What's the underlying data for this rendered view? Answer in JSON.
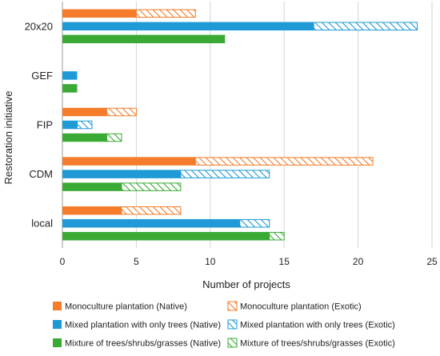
{
  "chart_data": {
    "type": "bar",
    "orientation": "horizontal",
    "stacked": true,
    "xlabel": "Number of projects",
    "ylabel": "Restoration initiative",
    "xlim": [
      0,
      25
    ],
    "xticks": [
      0,
      5,
      10,
      15,
      20,
      25
    ],
    "grid": "vertical",
    "legend_position": "bottom",
    "categories": [
      "20x20",
      "GEF",
      "FIP",
      "CDM",
      "local"
    ],
    "groups": [
      {
        "name": "Monoculture plantation",
        "color": "#f47c2a",
        "native": [
          5,
          0,
          3,
          9,
          4
        ],
        "exotic": [
          4,
          0,
          2,
          12,
          4
        ]
      },
      {
        "name": "Mixed plantation with only trees",
        "color": "#1f9ad6",
        "native": [
          17,
          1,
          1,
          8,
          12
        ],
        "exotic": [
          7,
          0,
          1,
          6,
          2
        ]
      },
      {
        "name": "Mixture of trees/shrubs/grasses",
        "color": "#3aaa35",
        "native": [
          11,
          1,
          3,
          4,
          14
        ],
        "exotic": [
          0,
          0,
          1,
          4,
          1
        ]
      }
    ],
    "legend": [
      "Monoculture plantation (Native)",
      "Monoculture plantation (Exotic)",
      "Mixed plantation with only trees (Native)",
      "Mixed plantation with only trees (Exotic)",
      "Mixture of trees/shrubs/grasses (Native)",
      "Mixture of trees/shrubs/grasses (Exotic)"
    ]
  }
}
